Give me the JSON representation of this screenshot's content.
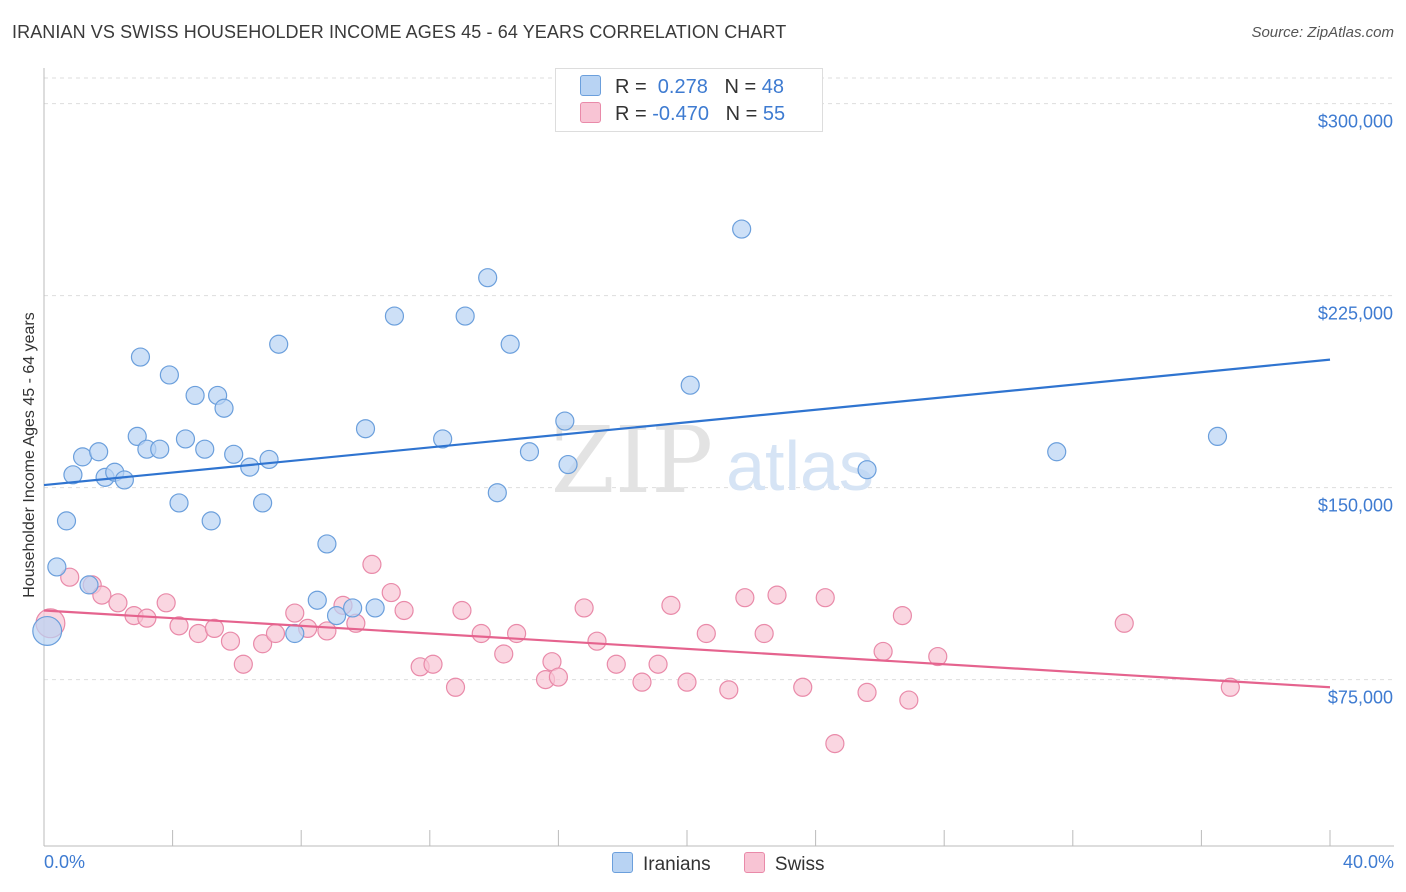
{
  "title": "IRANIAN VS SWISS HOUSEHOLDER INCOME AGES 45 - 64 YEARS CORRELATION CHART",
  "source": "Source: ZipAtlas.com",
  "watermark": {
    "zip": "ZIP",
    "atlas": "atlas"
  },
  "legend": {
    "rows": [
      {
        "r_label": "R =",
        "r_value": " 0.278",
        "n_label": "N =",
        "n_value": "48"
      },
      {
        "r_label": "R =",
        "r_value": "-0.470",
        "n_label": "N =",
        "n_value": "55"
      }
    ]
  },
  "bottom_legend": {
    "iranians": "Iranians",
    "swiss": "Swiss"
  },
  "axis_labels": {
    "x_min": "0.0%",
    "x_max": "40.0%",
    "y_title": "Householder Income Ages 45 - 64 years"
  },
  "colors": {
    "iranians_fill": "#b8d3f3",
    "iranians_stroke": "#6b9fdc",
    "iranians_line": "#2f74d0",
    "swiss_fill": "#f8c4d4",
    "swiss_stroke": "#e98aa9",
    "swiss_line": "#e5638e",
    "grid": "#dddddd",
    "tick_label": "#3e7bd1"
  },
  "chart_data": {
    "type": "scatter",
    "title": "IRANIAN VS SWISS HOUSEHOLDER INCOME AGES 45 - 64 YEARS CORRELATION CHART",
    "xlabel": "",
    "ylabel": "Householder Income Ages 45 - 64 years",
    "xlim": [
      0,
      40
    ],
    "ylim": [
      10000,
      310000
    ],
    "y_ticks": [
      75000,
      150000,
      225000,
      300000
    ],
    "y_tick_labels": [
      "$75,000",
      "$150,000",
      "$225,000",
      "$300,000"
    ],
    "x_tick_labels": [
      "0.0%",
      "40.0%"
    ],
    "grid": true,
    "series": [
      {
        "name": "Iranians",
        "r": 0.278,
        "n": 48,
        "trend": [
          [
            0,
            151000
          ],
          [
            40,
            200000
          ]
        ],
        "points": [
          [
            0.1,
            94000,
            1.6
          ],
          [
            0.4,
            119000,
            1
          ],
          [
            0.7,
            137000,
            1
          ],
          [
            0.9,
            155000,
            1
          ],
          [
            1.2,
            162000,
            1
          ],
          [
            1.4,
            112000,
            1
          ],
          [
            1.7,
            164000,
            1
          ],
          [
            1.9,
            154000,
            1
          ],
          [
            2.2,
            156000,
            1
          ],
          [
            2.5,
            153000,
            1
          ],
          [
            2.9,
            170000,
            1
          ],
          [
            3.0,
            201000,
            1
          ],
          [
            3.2,
            165000,
            1
          ],
          [
            3.6,
            165000,
            1
          ],
          [
            3.9,
            194000,
            1
          ],
          [
            4.2,
            144000,
            1
          ],
          [
            4.4,
            169000,
            1
          ],
          [
            4.7,
            186000,
            1
          ],
          [
            5.0,
            165000,
            1
          ],
          [
            5.2,
            137000,
            1
          ],
          [
            5.4,
            186000,
            1
          ],
          [
            5.6,
            181000,
            1
          ],
          [
            5.9,
            163000,
            1
          ],
          [
            6.4,
            158000,
            1
          ],
          [
            6.8,
            144000,
            1
          ],
          [
            7.0,
            161000,
            1
          ],
          [
            7.3,
            206000,
            1
          ],
          [
            7.8,
            93000,
            1
          ],
          [
            8.5,
            106000,
            1
          ],
          [
            8.8,
            128000,
            1
          ],
          [
            9.1,
            100000,
            1
          ],
          [
            9.6,
            103000,
            1
          ],
          [
            10.0,
            173000,
            1
          ],
          [
            10.3,
            103000,
            1
          ],
          [
            10.9,
            217000,
            1
          ],
          [
            12.4,
            169000,
            1
          ],
          [
            13.1,
            217000,
            1
          ],
          [
            13.8,
            232000,
            1
          ],
          [
            14.1,
            148000,
            1
          ],
          [
            14.5,
            206000,
            1
          ],
          [
            15.1,
            164000,
            1
          ],
          [
            16.2,
            176000,
            1
          ],
          [
            16.3,
            159000,
            1
          ],
          [
            20.1,
            190000,
            1
          ],
          [
            21.7,
            251000,
            1
          ],
          [
            25.6,
            157000,
            1
          ],
          [
            31.5,
            164000,
            1
          ],
          [
            36.5,
            170000,
            1
          ]
        ]
      },
      {
        "name": "Swiss",
        "r": -0.47,
        "n": 55,
        "trend": [
          [
            0,
            102000
          ],
          [
            40,
            72000
          ]
        ],
        "points": [
          [
            0.2,
            97000,
            1.6
          ],
          [
            0.8,
            115000,
            1
          ],
          [
            1.5,
            112000,
            1
          ],
          [
            1.8,
            108000,
            1
          ],
          [
            2.3,
            105000,
            1
          ],
          [
            2.8,
            100000,
            1
          ],
          [
            3.2,
            99000,
            1
          ],
          [
            3.8,
            105000,
            1
          ],
          [
            4.2,
            96000,
            1
          ],
          [
            4.8,
            93000,
            1
          ],
          [
            5.3,
            95000,
            1
          ],
          [
            5.8,
            90000,
            1
          ],
          [
            6.2,
            81000,
            1
          ],
          [
            6.8,
            89000,
            1
          ],
          [
            7.2,
            93000,
            1
          ],
          [
            7.8,
            101000,
            1
          ],
          [
            8.2,
            95000,
            1
          ],
          [
            8.8,
            94000,
            1
          ],
          [
            9.3,
            104000,
            1
          ],
          [
            9.7,
            97000,
            1
          ],
          [
            10.2,
            120000,
            1
          ],
          [
            10.8,
            109000,
            1
          ],
          [
            11.2,
            102000,
            1
          ],
          [
            11.7,
            80000,
            1
          ],
          [
            12.1,
            81000,
            1
          ],
          [
            12.8,
            72000,
            1
          ],
          [
            13.0,
            102000,
            1
          ],
          [
            13.6,
            93000,
            1
          ],
          [
            14.3,
            85000,
            1
          ],
          [
            14.7,
            93000,
            1
          ],
          [
            15.6,
            75000,
            1
          ],
          [
            15.8,
            82000,
            1
          ],
          [
            16.0,
            76000,
            1
          ],
          [
            16.8,
            103000,
            1
          ],
          [
            17.2,
            90000,
            1
          ],
          [
            17.8,
            81000,
            1
          ],
          [
            18.6,
            74000,
            1
          ],
          [
            19.1,
            81000,
            1
          ],
          [
            19.5,
            104000,
            1
          ],
          [
            20.0,
            74000,
            1
          ],
          [
            20.6,
            93000,
            1
          ],
          [
            21.3,
            71000,
            1
          ],
          [
            21.8,
            107000,
            1
          ],
          [
            22.4,
            93000,
            1
          ],
          [
            22.8,
            108000,
            1
          ],
          [
            23.6,
            72000,
            1
          ],
          [
            24.3,
            107000,
            1
          ],
          [
            24.6,
            50000,
            1
          ],
          [
            25.6,
            70000,
            1
          ],
          [
            26.1,
            86000,
            1
          ],
          [
            26.7,
            100000,
            1
          ],
          [
            26.9,
            67000,
            1
          ],
          [
            27.8,
            84000,
            1
          ],
          [
            33.6,
            97000,
            1
          ],
          [
            36.9,
            72000,
            1
          ]
        ]
      }
    ]
  }
}
